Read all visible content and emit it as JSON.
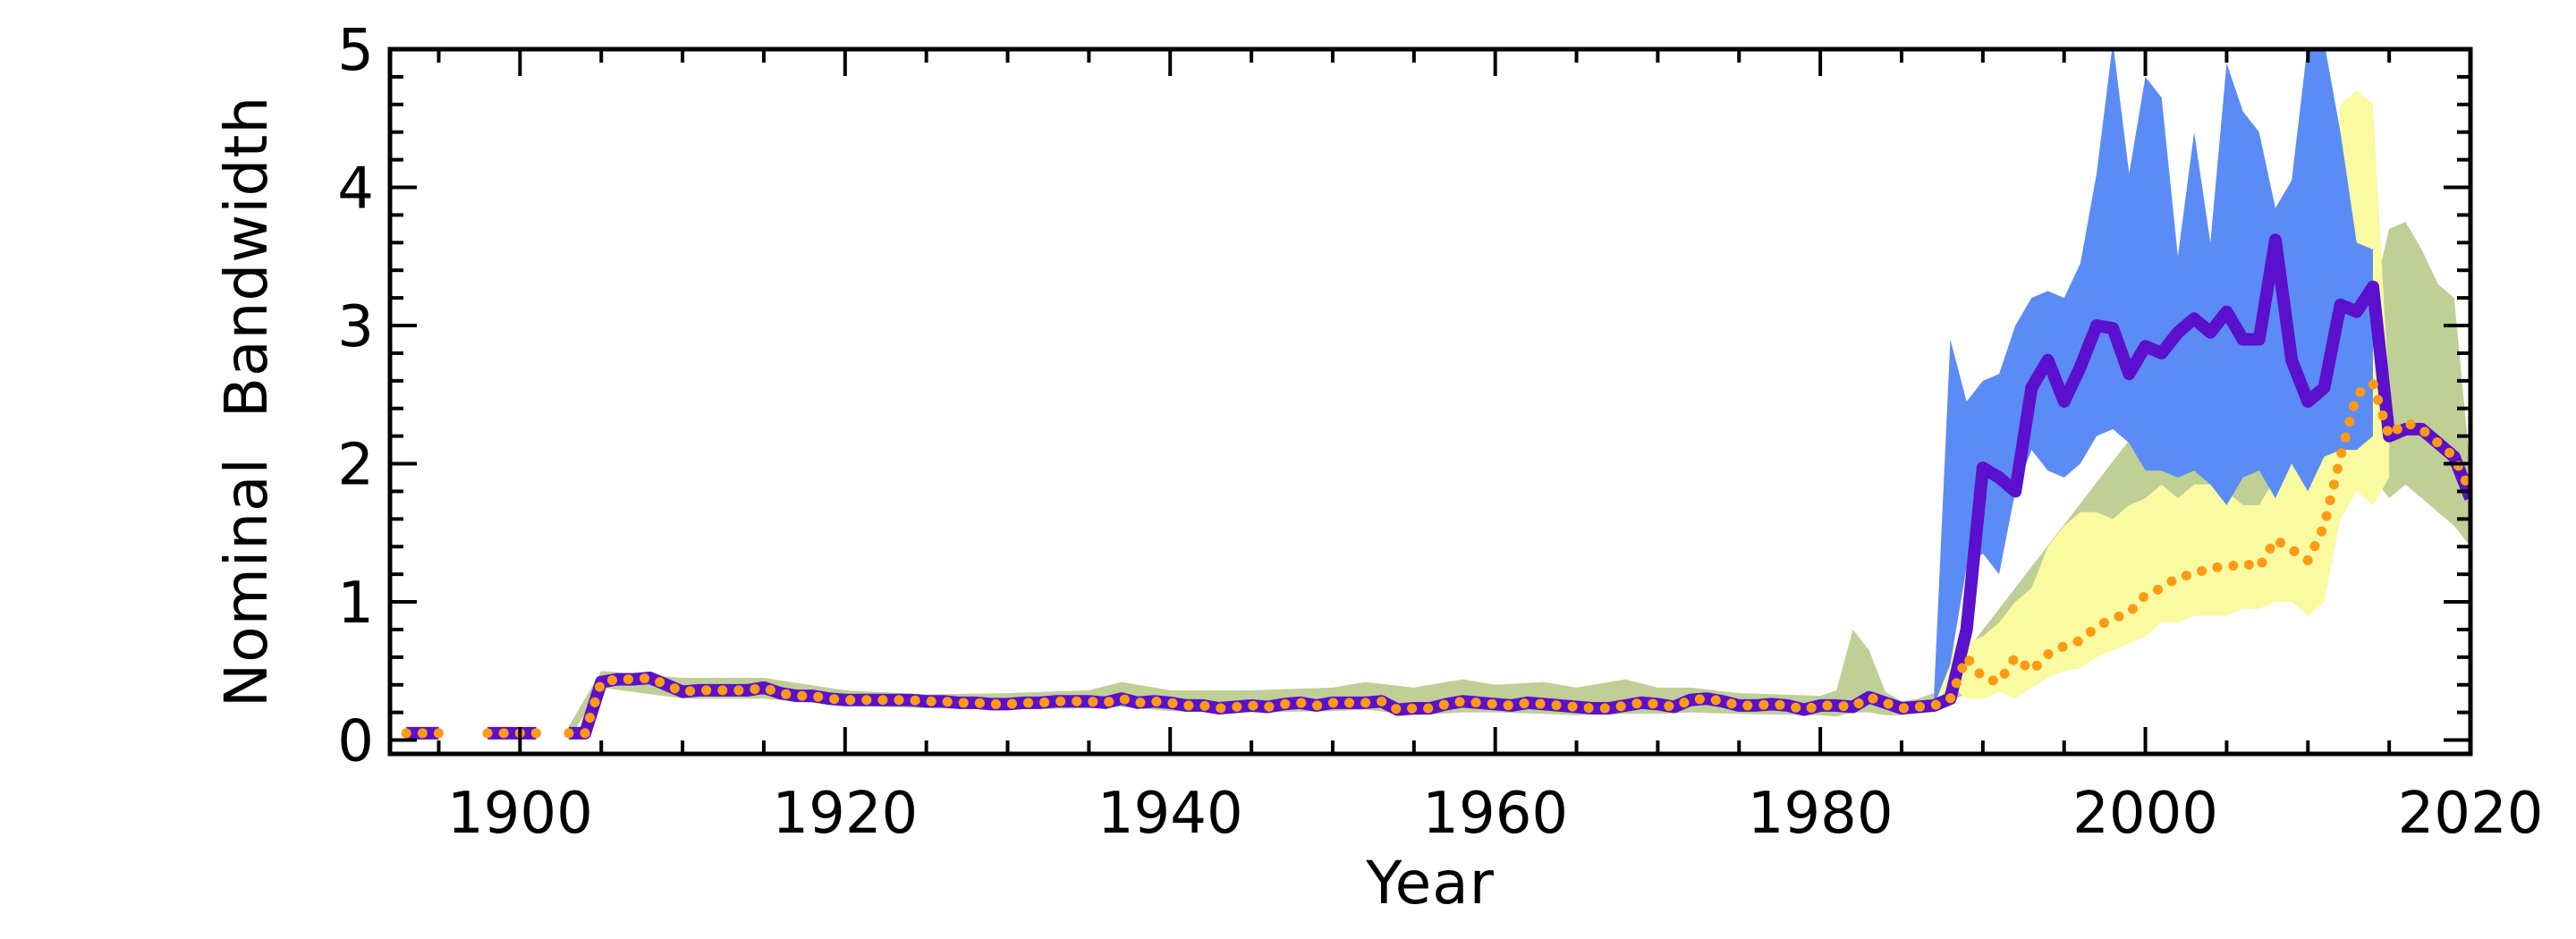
{
  "chart_data": {
    "type": "line",
    "title": "",
    "xlabel": "Year",
    "ylabel": "Nominal  Bandwidth",
    "xlim": [
      1892,
      2020
    ],
    "ylim": [
      -0.1,
      5.0
    ],
    "x_ticks": [
      1900,
      1920,
      1940,
      1960,
      1980,
      2000,
      2020
    ],
    "y_ticks": [
      0,
      1,
      2,
      3,
      4,
      5
    ],
    "x_tick_labels": [
      "1900",
      "1920",
      "1940",
      "1960",
      "1980",
      "2000",
      "2020"
    ],
    "y_tick_labels": [
      "0",
      "1",
      "2",
      "3",
      "4",
      "5"
    ],
    "grid": false,
    "legend": "none",
    "colors": {
      "band_blue": "#5b8cf5",
      "band_yellow": "#fafaa0",
      "band_green": "#bfcf96",
      "line_purple": "#5a10cc",
      "line_orange": "#ff9a14"
    },
    "series": [
      {
        "style": "solid-thick",
        "color": "#5a10cc",
        "segments": [
          {
            "x": [
              1893,
              1894,
              1895
            ],
            "y": [
              0.05,
              0.05,
              0.05
            ]
          },
          {
            "x": [
              1898,
              1899,
              1900,
              1901
            ],
            "y": [
              0.05,
              0.05,
              0.05,
              0.05
            ]
          },
          {
            "x": [
              1903,
              1904,
              1905,
              1906,
              1907,
              1908,
              1909,
              1910,
              1911,
              1912,
              1913,
              1914,
              1915,
              1916,
              1917,
              1918,
              1919,
              1920,
              1921,
              1922,
              1923,
              1924,
              1925,
              1926,
              1927,
              1928,
              1929,
              1930,
              1931,
              1932,
              1933,
              1934,
              1935,
              1936,
              1937,
              1938,
              1939,
              1940,
              1941,
              1942,
              1943,
              1944,
              1945,
              1946,
              1947,
              1948,
              1949,
              1950,
              1951,
              1952,
              1953,
              1954,
              1955,
              1956,
              1957,
              1958,
              1959,
              1960,
              1961,
              1962,
              1963,
              1964,
              1965,
              1966,
              1967,
              1968,
              1969,
              1970,
              1971,
              1972,
              1973,
              1974,
              1975,
              1976,
              1977,
              1978,
              1979,
              1980,
              1981,
              1982,
              1983,
              1984,
              1985,
              1986,
              1987,
              1988,
              1989,
              1990,
              1991,
              1992,
              1993,
              1994,
              1995,
              1996,
              1997,
              1998,
              1999,
              2000,
              2001,
              2002,
              2003,
              2004,
              2005,
              2006,
              2007,
              2008,
              2009,
              2010,
              2011,
              2012,
              2013,
              2014,
              2015,
              2016,
              2017,
              2018,
              2019,
              2020
            ],
            "y": [
              0.05,
              0.05,
              0.42,
              0.44,
              0.44,
              0.45,
              0.4,
              0.35,
              0.36,
              0.36,
              0.36,
              0.36,
              0.38,
              0.34,
              0.32,
              0.32,
              0.3,
              0.29,
              0.29,
              0.29,
              0.29,
              0.29,
              0.28,
              0.28,
              0.27,
              0.27,
              0.26,
              0.26,
              0.27,
              0.27,
              0.28,
              0.28,
              0.28,
              0.27,
              0.3,
              0.27,
              0.28,
              0.27,
              0.25,
              0.25,
              0.23,
              0.24,
              0.25,
              0.24,
              0.26,
              0.27,
              0.25,
              0.27,
              0.27,
              0.27,
              0.28,
              0.22,
              0.23,
              0.23,
              0.26,
              0.28,
              0.27,
              0.26,
              0.25,
              0.27,
              0.26,
              0.25,
              0.24,
              0.23,
              0.23,
              0.25,
              0.27,
              0.26,
              0.24,
              0.29,
              0.3,
              0.28,
              0.25,
              0.25,
              0.26,
              0.25,
              0.22,
              0.25,
              0.25,
              0.24,
              0.31,
              0.27,
              0.23,
              0.24,
              0.25,
              0.3,
              0.8,
              1.97,
              1.9,
              1.8,
              2.55,
              2.75,
              2.45,
              2.7,
              3.0,
              2.98,
              2.65,
              2.85,
              2.8,
              2.95,
              3.05,
              2.95,
              3.1,
              2.9,
              2.9,
              3.62,
              2.75,
              2.45,
              2.55,
              3.15,
              3.1,
              3.28,
              2.2,
              2.25,
              2.25,
              2.15,
              2.05,
              1.75
            ]
          }
        ]
      },
      {
        "style": "dotted-thick",
        "color": "#ff9a14",
        "segments": [
          {
            "x": [
              1893,
              1894,
              1895
            ],
            "y": [
              0.05,
              0.05,
              0.05
            ]
          },
          {
            "x": [
              1898,
              1899,
              1900,
              1901
            ],
            "y": [
              0.05,
              0.05,
              0.05,
              0.05
            ]
          },
          {
            "x": [
              1903,
              1904,
              1905,
              1906,
              1907,
              1908,
              1909,
              1910,
              1911,
              1912,
              1913,
              1914,
              1915,
              1916,
              1917,
              1918,
              1919,
              1920,
              1921,
              1922,
              1923,
              1924,
              1925,
              1926,
              1927,
              1928,
              1929,
              1930,
              1931,
              1932,
              1933,
              1934,
              1935,
              1936,
              1937,
              1938,
              1939,
              1940,
              1941,
              1942,
              1943,
              1944,
              1945,
              1946,
              1947,
              1948,
              1949,
              1950,
              1951,
              1952,
              1953,
              1954,
              1955,
              1956,
              1957,
              1958,
              1959,
              1960,
              1961,
              1962,
              1963,
              1964,
              1965,
              1966,
              1967,
              1968,
              1969,
              1970,
              1971,
              1972,
              1973,
              1974,
              1975,
              1976,
              1977,
              1978,
              1979,
              1980,
              1981,
              1982,
              1983,
              1984,
              1985,
              1986,
              1987,
              1988,
              1989,
              1990,
              1991,
              1992,
              1993,
              1994,
              1995,
              1996,
              1997,
              1998,
              1999,
              2000,
              2001,
              2002,
              2003,
              2004,
              2005,
              2006,
              2007,
              2008,
              2009,
              2010,
              2011,
              2012,
              2013,
              2014,
              2015,
              2016,
              2017,
              2018,
              2019,
              2020
            ],
            "y": [
              0.05,
              0.05,
              0.42,
              0.44,
              0.44,
              0.45,
              0.4,
              0.35,
              0.36,
              0.36,
              0.36,
              0.36,
              0.38,
              0.34,
              0.32,
              0.32,
              0.3,
              0.29,
              0.29,
              0.29,
              0.29,
              0.29,
              0.28,
              0.28,
              0.27,
              0.27,
              0.26,
              0.26,
              0.27,
              0.27,
              0.28,
              0.28,
              0.28,
              0.27,
              0.3,
              0.27,
              0.28,
              0.27,
              0.25,
              0.25,
              0.23,
              0.24,
              0.25,
              0.24,
              0.26,
              0.27,
              0.25,
              0.27,
              0.27,
              0.27,
              0.28,
              0.22,
              0.23,
              0.23,
              0.26,
              0.28,
              0.27,
              0.26,
              0.25,
              0.27,
              0.26,
              0.25,
              0.24,
              0.23,
              0.23,
              0.25,
              0.27,
              0.26,
              0.24,
              0.29,
              0.3,
              0.28,
              0.25,
              0.25,
              0.26,
              0.25,
              0.22,
              0.25,
              0.25,
              0.24,
              0.31,
              0.27,
              0.23,
              0.24,
              0.25,
              0.3,
              0.6,
              0.45,
              0.42,
              0.6,
              0.5,
              0.62,
              0.68,
              0.72,
              0.82,
              0.88,
              0.92,
              1.05,
              1.1,
              1.18,
              1.2,
              1.25,
              1.25,
              1.28,
              1.25,
              1.45,
              1.38,
              1.3,
              1.55,
              2.05,
              2.5,
              2.58,
              2.2,
              2.3,
              2.25,
              2.15,
              2.05,
              1.8
            ]
          }
        ]
      }
    ],
    "bands": [
      {
        "color": "#bfcf96",
        "x": [
          1903,
          1905,
          1910,
          1915,
          1920,
          1925,
          1930,
          1935,
          1937,
          1940,
          1945,
          1950,
          1952,
          1955,
          1958,
          1960,
          1963,
          1965,
          1968,
          1970,
          1972,
          1975,
          1980,
          1981,
          1982,
          1983,
          1984,
          1985,
          1986,
          1987,
          2011,
          2012,
          2013,
          2014,
          2015,
          2016,
          2017,
          2018,
          2019,
          2020
        ],
        "upper": [
          0.1,
          0.5,
          0.45,
          0.45,
          0.36,
          0.33,
          0.34,
          0.36,
          0.42,
          0.36,
          0.36,
          0.38,
          0.42,
          0.38,
          0.44,
          0.4,
          0.42,
          0.38,
          0.44,
          0.38,
          0.38,
          0.34,
          0.32,
          0.36,
          0.8,
          0.65,
          0.35,
          0.28,
          0.3,
          0.34,
          4.0,
          4.15,
          4.0,
          3.2,
          3.7,
          3.75,
          3.55,
          3.3,
          3.2,
          1.95
        ],
        "lower": [
          0.0,
          0.38,
          0.3,
          0.3,
          0.25,
          0.23,
          0.22,
          0.23,
          0.24,
          0.21,
          0.2,
          0.21,
          0.22,
          0.18,
          0.2,
          0.2,
          0.19,
          0.18,
          0.19,
          0.19,
          0.2,
          0.19,
          0.18,
          0.17,
          0.2,
          0.2,
          0.18,
          0.18,
          0.2,
          0.22,
          1.6,
          1.7,
          1.85,
          1.9,
          1.75,
          1.85,
          1.75,
          1.65,
          1.55,
          1.4
        ]
      },
      {
        "color": "#fafaa0",
        "x": [
          1987,
          1988,
          1989,
          1990,
          1991,
          1992,
          1993,
          1994,
          1995,
          1996,
          1997,
          1998,
          1999,
          2000,
          2001,
          2002,
          2003,
          2004,
          2005,
          2006,
          2007,
          2008,
          2009,
          2010,
          2011,
          2012,
          2013,
          2014,
          2015
        ],
        "upper": [
          0.35,
          0.7,
          0.7,
          0.75,
          0.85,
          1.0,
          1.1,
          1.4,
          1.55,
          1.65,
          1.65,
          1.6,
          1.7,
          1.75,
          1.85,
          1.75,
          1.85,
          1.85,
          1.8,
          1.7,
          1.7,
          1.9,
          2.0,
          2.2,
          3.0,
          4.6,
          4.7,
          4.6,
          2.5
        ],
        "lower": [
          0.25,
          0.4,
          0.3,
          0.3,
          0.35,
          0.3,
          0.38,
          0.45,
          0.5,
          0.52,
          0.6,
          0.65,
          0.7,
          0.75,
          0.85,
          0.85,
          0.9,
          0.9,
          0.9,
          0.95,
          0.95,
          1.0,
          1.0,
          0.9,
          1.0,
          1.6,
          1.8,
          1.7,
          1.9
        ]
      },
      {
        "color": "#5b8cf5",
        "x": [
          1987,
          1988,
          1989,
          1990,
          1991,
          1992,
          1993,
          1994,
          1995,
          1996,
          1997,
          1998,
          1999,
          2000,
          2001,
          2002,
          2003,
          2004,
          2005,
          2006,
          2007,
          2008,
          2009,
          2010,
          2011,
          2012,
          2013,
          2014
        ],
        "upper": [
          0.35,
          2.9,
          2.45,
          2.6,
          2.65,
          3.0,
          3.2,
          3.25,
          3.2,
          3.45,
          4.1,
          5.05,
          4.1,
          4.8,
          4.65,
          3.5,
          4.4,
          3.6,
          4.9,
          4.55,
          4.4,
          3.85,
          4.05,
          5.05,
          5.05,
          4.4,
          3.6,
          3.55
        ],
        "lower": [
          0.25,
          0.55,
          1.25,
          1.35,
          1.2,
          1.8,
          2.1,
          1.95,
          1.9,
          2.0,
          2.2,
          2.25,
          2.15,
          1.95,
          1.95,
          1.9,
          1.95,
          1.85,
          1.7,
          1.9,
          1.95,
          1.75,
          2.0,
          1.8,
          2.05,
          2.1,
          2.1,
          2.2
        ]
      }
    ]
  }
}
